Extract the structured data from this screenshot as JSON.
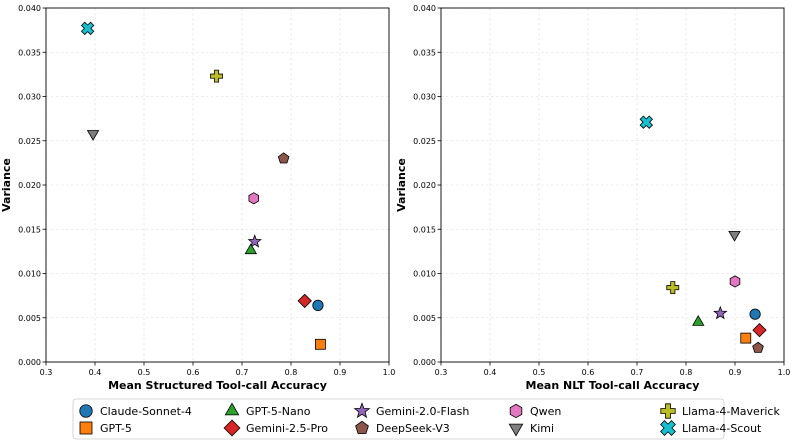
{
  "chart_data": [
    {
      "type": "scatter",
      "title": "",
      "xlabel": "Mean Structured Tool-call Accuracy",
      "ylabel": "Variance",
      "xlim": [
        0.3,
        1.0
      ],
      "ylim": [
        0.0,
        0.04
      ],
      "grid": true,
      "xticks": [
        "0.3",
        "0.4",
        "0.5",
        "0.6",
        "0.7",
        "0.8",
        "0.9",
        "1.0"
      ],
      "yticks": [
        "0.000",
        "0.005",
        "0.010",
        "0.015",
        "0.020",
        "0.025",
        "0.030",
        "0.035",
        "0.040"
      ],
      "points": [
        {
          "model": "Llama-4-Scout",
          "x": 0.385,
          "y": 0.0377
        },
        {
          "model": "Llama-4-Maverick",
          "x": 0.648,
          "y": 0.0323
        },
        {
          "model": "Kimi",
          "x": 0.396,
          "y": 0.0258
        },
        {
          "model": "DeepSeek-V3",
          "x": 0.785,
          "y": 0.023
        },
        {
          "model": "Qwen",
          "x": 0.724,
          "y": 0.0185
        },
        {
          "model": "Gemini-2.0-Flash",
          "x": 0.726,
          "y": 0.0136
        },
        {
          "model": "GPT-5-Nano",
          "x": 0.718,
          "y": 0.0126
        },
        {
          "model": "Gemini-2.5-Pro",
          "x": 0.828,
          "y": 0.0069
        },
        {
          "model": "Claude-Sonnet-4",
          "x": 0.855,
          "y": 0.0064
        },
        {
          "model": "GPT-5",
          "x": 0.86,
          "y": 0.002
        }
      ]
    },
    {
      "type": "scatter",
      "title": "",
      "xlabel": "Mean NLT Tool-call Accuracy",
      "ylabel": "Variance",
      "xlim": [
        0.3,
        1.0
      ],
      "ylim": [
        0.0,
        0.04
      ],
      "grid": true,
      "xticks": [
        "0.3",
        "0.4",
        "0.5",
        "0.6",
        "0.7",
        "0.8",
        "0.9",
        "1.0"
      ],
      "yticks": [
        "0.000",
        "0.005",
        "0.010",
        "0.015",
        "0.020",
        "0.025",
        "0.030",
        "0.035",
        "0.040"
      ],
      "points": [
        {
          "model": "Llama-4-Scout",
          "x": 0.719,
          "y": 0.0271
        },
        {
          "model": "Kimi",
          "x": 0.899,
          "y": 0.0144
        },
        {
          "model": "Qwen",
          "x": 0.9,
          "y": 0.0091
        },
        {
          "model": "Llama-4-Maverick",
          "x": 0.773,
          "y": 0.0084
        },
        {
          "model": "Gemini-2.0-Flash",
          "x": 0.87,
          "y": 0.0055
        },
        {
          "model": "Claude-Sonnet-4",
          "x": 0.941,
          "y": 0.0054
        },
        {
          "model": "GPT-5-Nano",
          "x": 0.825,
          "y": 0.0045
        },
        {
          "model": "Gemini-2.5-Pro",
          "x": 0.95,
          "y": 0.0036
        },
        {
          "model": "GPT-5",
          "x": 0.922,
          "y": 0.0027
        },
        {
          "model": "DeepSeek-V3",
          "x": 0.947,
          "y": 0.0016
        }
      ]
    }
  ],
  "legend": {
    "placement": "bottom",
    "entries": [
      {
        "label": "Claude-Sonnet-4",
        "marker": "circle-icon",
        "color": "#1f77b4"
      },
      {
        "label": "GPT-5",
        "marker": "square-icon",
        "color": "#ff7f0e"
      },
      {
        "label": "GPT-5-Nano",
        "marker": "triangle-up-icon",
        "color": "#2ca02c"
      },
      {
        "label": "Gemini-2.5-Pro",
        "marker": "diamond-icon",
        "color": "#d62728"
      },
      {
        "label": "Gemini-2.0-Flash",
        "marker": "star-icon",
        "color": "#9467bd"
      },
      {
        "label": "DeepSeek-V3",
        "marker": "pentagon-icon",
        "color": "#8c564b"
      },
      {
        "label": "Qwen",
        "marker": "hexagon-icon",
        "color": "#e377c2"
      },
      {
        "label": "Kimi",
        "marker": "triangle-down-icon",
        "color": "#7f7f7f"
      },
      {
        "label": "Llama-4-Maverick",
        "marker": "plus-icon",
        "color": "#bcbd22"
      },
      {
        "label": "Llama-4-Scout",
        "marker": "x-icon",
        "color": "#17becf"
      }
    ]
  }
}
